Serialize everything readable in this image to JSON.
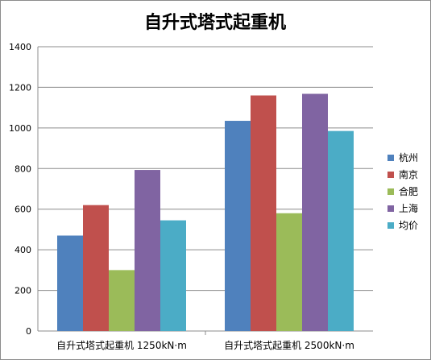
{
  "chart_data": {
    "type": "bar",
    "title": "自升式塔式起重机",
    "categories": [
      "自升式塔式起重机  1250kN·m",
      "自升式塔式起重机  2500kN·m"
    ],
    "series": [
      {
        "name": "杭州",
        "color": "#4f81bd",
        "values": [
          470,
          1035
        ]
      },
      {
        "name": "南京",
        "color": "#c0504d",
        "values": [
          620,
          1160
        ]
      },
      {
        "name": "合肥",
        "color": "#9bbb59",
        "values": [
          300,
          580
        ]
      },
      {
        "name": "上海",
        "color": "#8064a2",
        "values": [
          793,
          1168
        ]
      },
      {
        "name": "均价",
        "color": "#4bacc6",
        "values": [
          545,
          985
        ]
      }
    ],
    "ylim": [
      0,
      1400
    ],
    "yticks": [
      0,
      200,
      400,
      600,
      800,
      1000,
      1200,
      1400
    ],
    "xlabel": "",
    "ylabel": "",
    "grid": true,
    "legend_position": "right"
  }
}
